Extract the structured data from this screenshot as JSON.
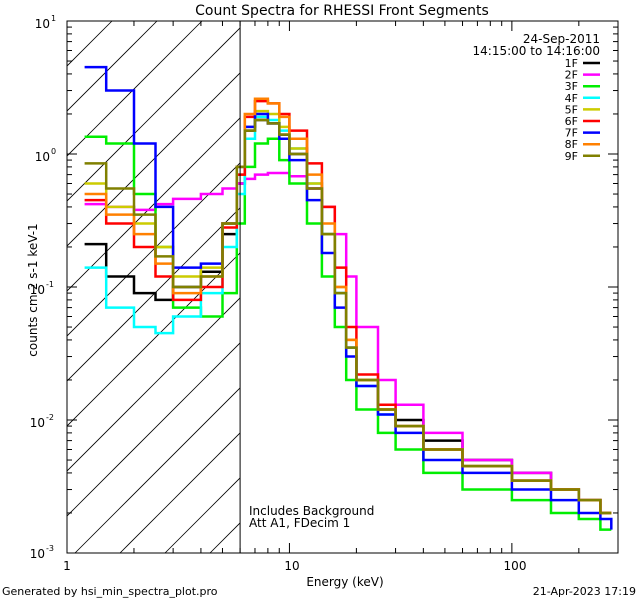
{
  "chart_data": {
    "type": "line",
    "title": "Count Spectra for RHESSI Front Segments",
    "xlabel": "Energy (keV)",
    "ylabel": "counts cm-2 s-1 keV-1",
    "xscale": "log",
    "yscale": "log",
    "xlim": [
      1,
      300
    ],
    "ylim": [
      0.001,
      10
    ],
    "x_ticklabels": [
      "1",
      "10",
      "100"
    ],
    "y_ticklabels": [
      "10",
      "10",
      "10",
      "10",
      "10"
    ],
    "y_tick_exponents": [
      "1",
      "0",
      "-1",
      "-2",
      "-3"
    ],
    "date_label": "24-Sep-2011",
    "time_range_label": "14:15:00 to 14:16:00",
    "annotation_lines": [
      "Includes Background",
      "Att A1, FDecim 1"
    ],
    "attenuator_cutoff_kev": 6,
    "series": [
      {
        "name": "1F",
        "color": "#000000",
        "x": [
          1.2,
          1.5,
          2,
          2.5,
          3,
          4,
          5,
          5.8,
          6.3,
          7,
          8,
          9,
          10,
          12,
          14,
          16,
          18,
          20,
          25,
          30,
          40,
          60,
          100,
          150,
          200,
          250,
          280
        ],
        "y": [
          0.21,
          0.12,
          0.09,
          0.08,
          0.1,
          0.13,
          0.25,
          0.6,
          1.5,
          1.8,
          1.7,
          1.4,
          1.0,
          0.55,
          0.25,
          0.09,
          0.035,
          0.02,
          0.012,
          0.01,
          0.007,
          0.005,
          0.004,
          0.003,
          0.0025,
          0.002,
          0.002
        ]
      },
      {
        "name": "2F",
        "color": "#ff00ff",
        "x": [
          1.2,
          1.5,
          2,
          2.5,
          3,
          4,
          5,
          5.8,
          6.3,
          7,
          8,
          9,
          10,
          12,
          14,
          16,
          18,
          20,
          25,
          30,
          40,
          60,
          100,
          150,
          200,
          250,
          280
        ],
        "y": [
          0.42,
          0.4,
          0.38,
          0.42,
          0.46,
          0.5,
          0.55,
          0.6,
          0.65,
          0.7,
          0.72,
          0.72,
          0.68,
          0.55,
          0.4,
          0.25,
          0.12,
          0.05,
          0.02,
          0.013,
          0.008,
          0.005,
          0.004,
          0.003,
          0.0025,
          0.002,
          0.002
        ]
      },
      {
        "name": "3F",
        "color": "#00ee00",
        "x": [
          1.2,
          1.5,
          2,
          2.5,
          3,
          4,
          5,
          5.8,
          6.3,
          7,
          8,
          9,
          10,
          12,
          14,
          16,
          18,
          20,
          25,
          30,
          40,
          60,
          100,
          150,
          200,
          250,
          280
        ],
        "y": [
          1.35,
          1.2,
          0.5,
          0.2,
          0.07,
          0.06,
          0.09,
          0.3,
          0.8,
          1.2,
          1.3,
          0.9,
          0.6,
          0.3,
          0.12,
          0.05,
          0.02,
          0.012,
          0.008,
          0.006,
          0.004,
          0.003,
          0.0025,
          0.002,
          0.0018,
          0.0015,
          0.0015
        ]
      },
      {
        "name": "4F",
        "color": "#00ffff",
        "x": [
          1.2,
          1.5,
          2,
          2.5,
          3,
          4,
          5,
          5.8,
          6.3,
          7,
          8,
          9,
          10,
          12,
          14,
          16,
          18,
          20,
          25,
          30,
          40,
          60,
          100,
          150,
          200,
          250,
          280
        ],
        "y": [
          0.14,
          0.07,
          0.05,
          0.045,
          0.06,
          0.09,
          0.2,
          0.5,
          1.3,
          1.9,
          1.8,
          1.5,
          1.1,
          0.6,
          0.25,
          0.09,
          0.035,
          0.018,
          0.011,
          0.009,
          0.006,
          0.0045,
          0.0035,
          0.003,
          0.0025,
          0.002,
          0.002
        ]
      },
      {
        "name": "5F",
        "color": "#cccc00",
        "x": [
          1.2,
          1.5,
          2,
          2.5,
          3,
          4,
          5,
          5.8,
          6.3,
          7,
          8,
          9,
          10,
          12,
          14,
          16,
          18,
          20,
          25,
          30,
          40,
          60,
          100,
          150,
          200,
          250,
          280
        ],
        "y": [
          0.6,
          0.4,
          0.3,
          0.2,
          0.12,
          0.14,
          0.3,
          0.7,
          1.6,
          2.1,
          2.0,
          1.6,
          1.1,
          0.6,
          0.25,
          0.1,
          0.04,
          0.02,
          0.012,
          0.009,
          0.006,
          0.0045,
          0.0035,
          0.003,
          0.0025,
          0.002,
          0.002
        ]
      },
      {
        "name": "6F",
        "color": "#ff0000",
        "x": [
          1.2,
          1.5,
          2,
          2.5,
          3,
          4,
          5,
          5.8,
          6.3,
          7,
          8,
          9,
          10,
          12,
          14,
          16,
          18,
          20,
          25,
          30,
          40,
          60,
          100,
          150,
          200,
          250,
          280
        ],
        "y": [
          0.45,
          0.3,
          0.2,
          0.12,
          0.08,
          0.1,
          0.28,
          0.7,
          1.9,
          2.5,
          2.4,
          2.0,
          1.5,
          0.85,
          0.4,
          0.14,
          0.05,
          0.022,
          0.013,
          0.009,
          0.006,
          0.0045,
          0.0035,
          0.003,
          0.0025,
          0.002,
          0.002
        ]
      },
      {
        "name": "7F",
        "color": "#0000ff",
        "x": [
          1.2,
          1.5,
          2,
          2.5,
          3,
          4,
          5,
          5.8,
          6.3,
          7,
          8,
          9,
          10,
          12,
          14,
          16,
          18,
          20,
          25,
          30,
          40,
          60,
          100,
          150,
          200,
          250,
          280
        ],
        "y": [
          4.5,
          3.0,
          1.2,
          0.4,
          0.14,
          0.15,
          0.3,
          0.8,
          1.6,
          2.0,
          1.7,
          1.3,
          0.9,
          0.45,
          0.18,
          0.07,
          0.03,
          0.018,
          0.011,
          0.008,
          0.005,
          0.004,
          0.003,
          0.0025,
          0.002,
          0.0018,
          0.0015
        ]
      },
      {
        "name": "8F",
        "color": "#ff8000",
        "x": [
          1.2,
          1.5,
          2,
          2.5,
          3,
          4,
          5,
          5.8,
          6.3,
          7,
          8,
          9,
          10,
          12,
          14,
          16,
          18,
          20,
          25,
          30,
          40,
          60,
          100,
          150,
          200,
          250,
          280
        ],
        "y": [
          0.5,
          0.35,
          0.25,
          0.15,
          0.09,
          0.12,
          0.3,
          0.8,
          2.0,
          2.6,
          2.4,
          1.9,
          1.3,
          0.7,
          0.3,
          0.1,
          0.04,
          0.02,
          0.012,
          0.009,
          0.006,
          0.0045,
          0.0035,
          0.003,
          0.0025,
          0.002,
          0.002
        ]
      },
      {
        "name": "9F",
        "color": "#808000",
        "x": [
          1.2,
          1.5,
          2,
          2.5,
          3,
          4,
          5,
          5.8,
          6.3,
          7,
          8,
          9,
          10,
          12,
          14,
          16,
          18,
          20,
          25,
          30,
          40,
          60,
          100,
          150,
          200,
          250,
          280
        ],
        "y": [
          0.85,
          0.55,
          0.35,
          0.17,
          0.1,
          0.12,
          0.3,
          0.8,
          1.5,
          1.8,
          1.7,
          1.4,
          1.0,
          0.55,
          0.25,
          0.09,
          0.035,
          0.02,
          0.012,
          0.009,
          0.006,
          0.0045,
          0.0035,
          0.003,
          0.0025,
          0.002,
          0.002
        ]
      }
    ]
  },
  "footer": {
    "generated_by": "Generated by hsi_min_spectra_plot.pro",
    "timestamp": "21-Apr-2023 17:19"
  }
}
